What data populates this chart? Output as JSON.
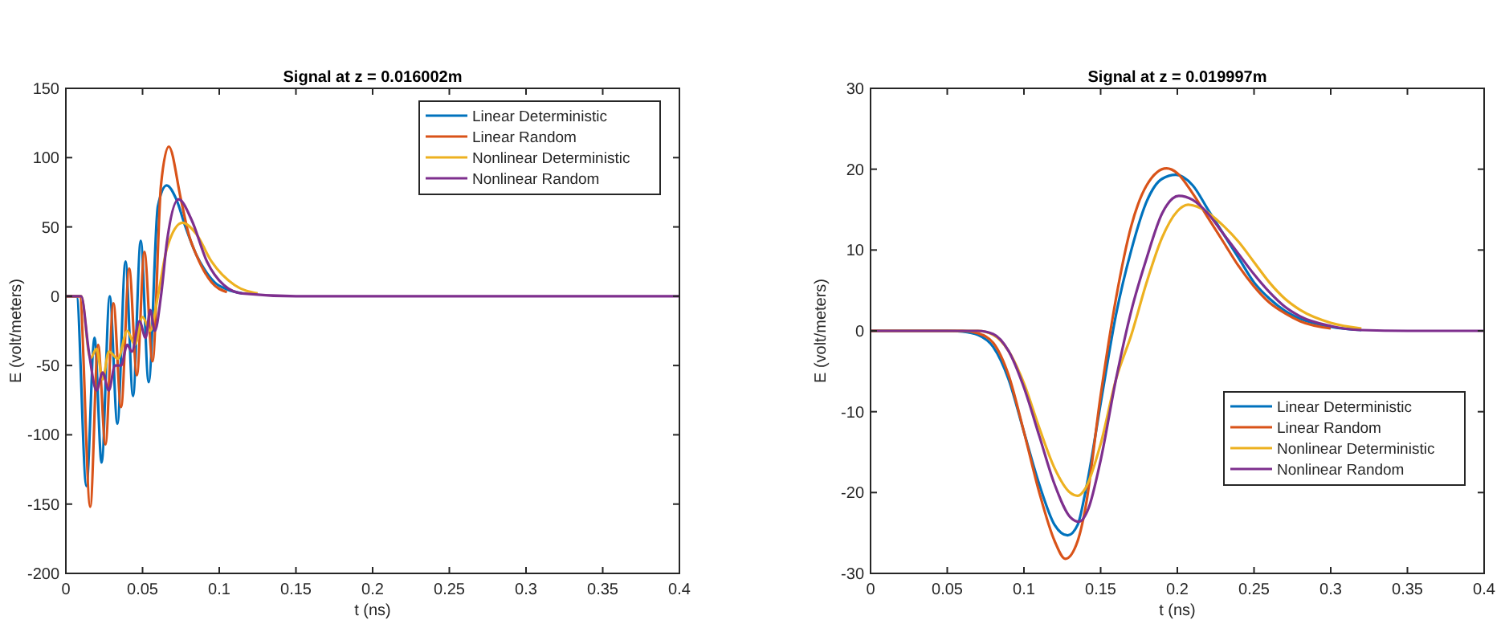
{
  "chart_data": [
    {
      "type": "line",
      "title": "Signal at z = 0.016002m",
      "xlabel": "t (ns)",
      "ylabel": "E (volt/meters)",
      "xlim": [
        0,
        0.4
      ],
      "ylim": [
        -200,
        150
      ],
      "xticks": [
        0,
        0.05,
        0.1,
        0.15,
        0.2,
        0.25,
        0.3,
        0.35,
        0.4
      ],
      "yticks": [
        -200,
        -150,
        -100,
        -50,
        0,
        50,
        100,
        150
      ],
      "legend": "top right",
      "grid": false,
      "series": [
        {
          "name": "Linear Deterministic",
          "color": "#0072bd",
          "x": [
            0,
            0.007,
            0.0134,
            0.0187,
            0.0233,
            0.0286,
            0.0336,
            0.0389,
            0.0438,
            0.0488,
            0.054,
            0.06,
            0.0657,
            0.072,
            0.078,
            0.085,
            0.09,
            0.097,
            0.105,
            0.115
          ],
          "values": [
            0,
            0,
            -137,
            -30,
            -120,
            0,
            -92,
            25,
            -72,
            40,
            -62,
            65,
            80,
            70,
            50,
            30,
            20,
            10,
            5,
            2
          ]
        },
        {
          "name": "Linear Random",
          "color": "#d95319",
          "x": [
            0,
            0.009,
            0.0159,
            0.021,
            0.0258,
            0.031,
            0.036,
            0.0413,
            0.0463,
            0.0512,
            0.0565,
            0.062,
            0.0671,
            0.075,
            0.08,
            0.085,
            0.095,
            0.105
          ],
          "values": [
            0,
            0,
            -152,
            -35,
            -107,
            -5,
            -80,
            20,
            -57,
            32,
            -47,
            80,
            108,
            70,
            45,
            30,
            10,
            3
          ]
        },
        {
          "name": "Nonlinear Deterministic",
          "color": "#edb120",
          "x": [
            0,
            0.01,
            0.016,
            0.02,
            0.024,
            0.028,
            0.034,
            0.04,
            0.045,
            0.05,
            0.055,
            0.06,
            0.066,
            0.076,
            0.085,
            0.095,
            0.11,
            0.125
          ],
          "values": [
            0,
            0,
            -45,
            -38,
            -60,
            -40,
            -45,
            -25,
            -35,
            -15,
            -25,
            0,
            35,
            53,
            45,
            25,
            8,
            2
          ]
        },
        {
          "name": "Nonlinear Random",
          "color": "#7e2f8e",
          "x": [
            0,
            0.01,
            0.015,
            0.02,
            0.024,
            0.028,
            0.032,
            0.036,
            0.04,
            0.043,
            0.048,
            0.052,
            0.055,
            0.058,
            0.062,
            0.066,
            0.0735,
            0.082,
            0.092,
            0.103,
            0.115,
            0.15,
            0.4
          ],
          "values": [
            0,
            0,
            -40,
            -68,
            -55,
            -68,
            -50,
            -50,
            -35,
            -40,
            -18,
            -30,
            -10,
            -25,
            0,
            40,
            70,
            55,
            25,
            8,
            2,
            0,
            0
          ]
        }
      ]
    },
    {
      "type": "line",
      "title": "Signal at z = 0.019997m",
      "xlabel": "t (ns)",
      "ylabel": "E (volt/meters)",
      "xlim": [
        0,
        0.4
      ],
      "ylim": [
        -30,
        30
      ],
      "xticks": [
        0,
        0.05,
        0.1,
        0.15,
        0.2,
        0.25,
        0.3,
        0.35,
        0.4
      ],
      "yticks": [
        -30,
        -20,
        -10,
        0,
        10,
        20,
        30
      ],
      "legend": "bottom right",
      "grid": false,
      "series": [
        {
          "name": "Linear Deterministic",
          "color": "#0072bd",
          "x": [
            0,
            0.05,
            0.06,
            0.07,
            0.08,
            0.09,
            0.1,
            0.11,
            0.12,
            0.1285,
            0.135,
            0.14,
            0.15,
            0.16,
            0.17,
            0.18,
            0.19,
            0.199,
            0.21,
            0.22,
            0.23,
            0.24,
            0.25,
            0.26,
            0.27,
            0.28,
            0.3,
            0.32
          ],
          "values": [
            0,
            0,
            -0.1,
            -0.5,
            -2,
            -6,
            -12.5,
            -19,
            -24,
            -25.3,
            -24,
            -20,
            -9,
            2,
            10,
            16,
            18.8,
            19.3,
            18,
            15,
            12,
            9,
            6,
            4,
            2.5,
            1.5,
            0.5,
            0.1
          ]
        },
        {
          "name": "Linear Random",
          "color": "#d95319",
          "x": [
            0,
            0.06,
            0.07,
            0.08,
            0.09,
            0.1,
            0.11,
            0.12,
            0.127,
            0.135,
            0.14,
            0.15,
            0.16,
            0.17,
            0.18,
            0.193,
            0.2,
            0.21,
            0.22,
            0.23,
            0.24,
            0.25,
            0.26,
            0.27,
            0.28,
            0.3
          ],
          "values": [
            0,
            0,
            -0.3,
            -1.5,
            -5.5,
            -12.5,
            -20,
            -26,
            -28.2,
            -26,
            -22,
            -8,
            4,
            13,
            18,
            20.1,
            19.5,
            17,
            14,
            11,
            8,
            5.5,
            3.5,
            2.2,
            1.2,
            0.3
          ]
        },
        {
          "name": "Nonlinear Deterministic",
          "color": "#edb120",
          "x": [
            0,
            0.07,
            0.08,
            0.09,
            0.1,
            0.11,
            0.12,
            0.13,
            0.135,
            0.14,
            0.15,
            0.16,
            0.17,
            0.18,
            0.19,
            0.2,
            0.207,
            0.215,
            0.23,
            0.24,
            0.25,
            0.26,
            0.27,
            0.28,
            0.3,
            0.32
          ],
          "values": [
            0,
            0,
            -0.5,
            -2.5,
            -6.5,
            -12,
            -17,
            -20,
            -20.4,
            -19.5,
            -14,
            -6,
            -0.5,
            6,
            11.5,
            14.8,
            15.6,
            15.2,
            13,
            11,
            8.5,
            6,
            4,
            2.6,
            1,
            0.3
          ]
        },
        {
          "name": "Nonlinear Random",
          "color": "#7e2f8e",
          "x": [
            0,
            0.07,
            0.08,
            0.09,
            0.1,
            0.11,
            0.12,
            0.13,
            0.136,
            0.142,
            0.15,
            0.16,
            0.17,
            0.18,
            0.19,
            0.201,
            0.21,
            0.22,
            0.23,
            0.24,
            0.25,
            0.26,
            0.27,
            0.28,
            0.3,
            0.32,
            0.35,
            0.4
          ],
          "values": [
            0,
            0,
            -0.4,
            -2.5,
            -7,
            -13,
            -19,
            -23,
            -23.6,
            -22,
            -16,
            -6,
            2.5,
            9,
            14.5,
            16.7,
            16.2,
            14.5,
            12,
            9.5,
            7,
            4.8,
            3,
            1.8,
            0.6,
            0.1,
            0,
            0
          ]
        }
      ]
    }
  ]
}
